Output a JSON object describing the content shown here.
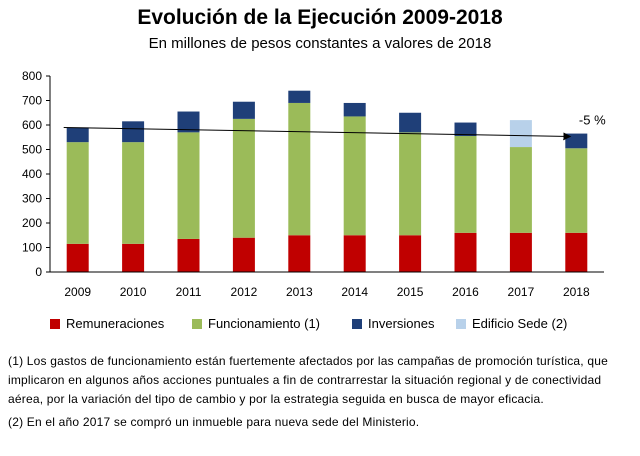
{
  "chart_data": {
    "type": "bar",
    "stacked": true,
    "title": "Evolución  de la Ejecución 2009-2018",
    "subtitle": "En millones de pesos constantes a valores de 2018",
    "categories": [
      "2009",
      "2010",
      "2011",
      "2012",
      "2013",
      "2014",
      "2015",
      "2016",
      "2017",
      "2018"
    ],
    "ylim": [
      0,
      800
    ],
    "yticks": [
      0,
      100,
      200,
      300,
      400,
      500,
      600,
      700,
      800
    ],
    "series": [
      {
        "name": "Remuneraciones",
        "color": "#c00000",
        "values": [
          115,
          115,
          135,
          140,
          150,
          150,
          150,
          160,
          160,
          160
        ]
      },
      {
        "name": "Funcionamiento (1)",
        "color": "#9bbb59",
        "values": [
          415,
          415,
          435,
          485,
          540,
          485,
          420,
          395,
          350,
          345
        ]
      },
      {
        "name": "Inversiones",
        "color": "#1f3f78",
        "values": [
          60,
          85,
          85,
          70,
          50,
          55,
          80,
          55,
          0,
          60
        ]
      },
      {
        "name": "Edificio Sede (2)",
        "color": "#b8d1ea",
        "values": [
          0,
          0,
          0,
          0,
          0,
          0,
          0,
          0,
          110,
          0
        ]
      }
    ],
    "trendline": {
      "from_year": "2009",
      "to_year": "2018",
      "start": 590,
      "end": 553
    },
    "annotation": "-5 %"
  },
  "notes": [
    "(1) Los gastos de funcionamiento están fuertemente afectados por las campañas de promoción turística, que implicaron en algunos años acciones puntuales a fin de contrarrestar la situación regional y de conectividad aérea, por la variación del tipo de cambio y por la estrategia seguida en busca de mayor eficacia.",
    "(2) En el año 2017 se compró un inmueble para nueva sede del Ministerio."
  ]
}
